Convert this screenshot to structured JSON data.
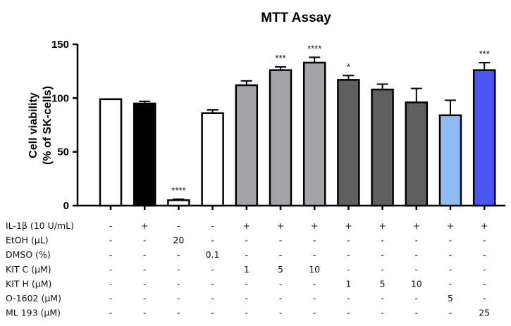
{
  "chart_data": {
    "type": "bar",
    "title": "MTT Assay",
    "ylabel_line1": "Cell viability",
    "ylabel_line2": "(% of SK-cells)",
    "ylim": [
      0,
      150
    ],
    "yticks": [
      "0",
      "50",
      "100",
      "150"
    ],
    "grid": false,
    "legend": "none",
    "bars": [
      {
        "value": 99,
        "error": 0,
        "color": "#ffffff",
        "sig": ""
      },
      {
        "value": 95,
        "error": 2,
        "color": "#000000",
        "sig": ""
      },
      {
        "value": 5,
        "error": 1,
        "color": "#ffffff",
        "sig": "****"
      },
      {
        "value": 86,
        "error": 3,
        "color": "#ffffff",
        "sig": ""
      },
      {
        "value": 112,
        "error": 4,
        "color": "#a3a3a8",
        "sig": ""
      },
      {
        "value": 126,
        "error": 3,
        "color": "#a3a3a8",
        "sig": "***"
      },
      {
        "value": 133,
        "error": 5,
        "color": "#a3a3a8",
        "sig": "****"
      },
      {
        "value": 117,
        "error": 4,
        "color": "#5f5f5f",
        "sig": "*"
      },
      {
        "value": 108,
        "error": 5,
        "color": "#5f5f5f",
        "sig": ""
      },
      {
        "value": 96,
        "error": 13,
        "color": "#5f5f5f",
        "sig": ""
      },
      {
        "value": 84,
        "error": 14,
        "color": "#8fbcf5",
        "sig": ""
      },
      {
        "value": 126,
        "error": 7,
        "color": "#4b55f0",
        "sig": "***"
      }
    ],
    "treatment_table": [
      {
        "label": "IL-1β (10 U/mL)",
        "cells": [
          "-",
          "+",
          "-",
          "-",
          "+",
          "+",
          "+",
          "+",
          "+",
          "+",
          "+",
          "+"
        ]
      },
      {
        "label": "EtOH (µL)",
        "cells": [
          "-",
          "-",
          "20",
          "-",
          "-",
          "-",
          "-",
          "-",
          "-",
          "-",
          "-",
          "-"
        ]
      },
      {
        "label": "DMSO (%)",
        "cells": [
          "-",
          "-",
          "-",
          "0.1",
          "-",
          "-",
          "-",
          "-",
          "-",
          "-",
          "-",
          "-"
        ]
      },
      {
        "label": "KIT C (µM)",
        "cells": [
          "-",
          "-",
          "-",
          "-",
          "1",
          "5",
          "10",
          "-",
          "-",
          "-",
          "-",
          "-"
        ]
      },
      {
        "label": "KIT H (µM)",
        "cells": [
          "-",
          "-",
          "-",
          "-",
          "-",
          "-",
          "-",
          "1",
          "5",
          "10",
          "-",
          "-"
        ]
      },
      {
        "label": "O-1602 (µM)",
        "cells": [
          "-",
          "-",
          "-",
          "-",
          "-",
          "-",
          "-",
          "-",
          "-",
          "-",
          "5",
          "-"
        ]
      },
      {
        "label": "ML 193 (µM)",
        "cells": [
          "-",
          "-",
          "-",
          "-",
          "-",
          "-",
          "-",
          "-",
          "-",
          "-",
          "-",
          "25"
        ]
      }
    ]
  }
}
